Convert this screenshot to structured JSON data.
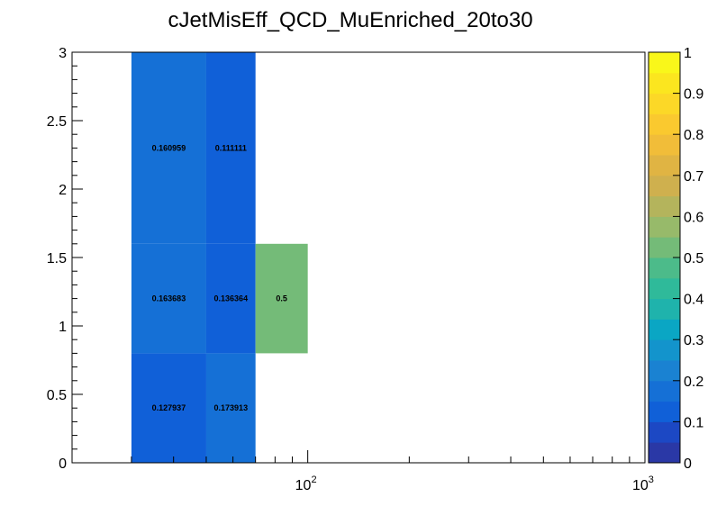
{
  "chart_data": {
    "type": "heatmap",
    "title": "cJetMisEff_QCD_MuEnriched_20to30",
    "xlabel": "",
    "ylabel": "",
    "x_scale": "log",
    "xlim": [
      20,
      1000
    ],
    "ylim": [
      0,
      3
    ],
    "zlim": [
      0,
      1
    ],
    "x_ticks": [
      {
        "value": 100,
        "label_base": "10",
        "label_exp": "2"
      },
      {
        "value": 1000,
        "label_base": "10",
        "label_exp": "3"
      }
    ],
    "y_ticks": [
      "0",
      "0.5",
      "1",
      "1.5",
      "2",
      "2.5",
      "3"
    ],
    "z_ticks": [
      "0",
      "0.1",
      "0.2",
      "0.3",
      "0.4",
      "0.5",
      "0.6",
      "0.7",
      "0.8",
      "0.9",
      "1"
    ],
    "cells": [
      {
        "x": [
          30,
          50
        ],
        "y": [
          0,
          0.8
        ],
        "value": 0.127937,
        "label": "0.127937"
      },
      {
        "x": [
          50,
          70
        ],
        "y": [
          0,
          0.8
        ],
        "value": 0.173913,
        "label": "0.173913"
      },
      {
        "x": [
          30,
          50
        ],
        "y": [
          0.8,
          1.6
        ],
        "value": 0.163683,
        "label": "0.163683"
      },
      {
        "x": [
          50,
          70
        ],
        "y": [
          0.8,
          1.6
        ],
        "value": 0.136364,
        "label": "0.136364"
      },
      {
        "x": [
          70,
          100
        ],
        "y": [
          0.8,
          1.6
        ],
        "value": 0.5,
        "label": "0.5"
      },
      {
        "x": [
          30,
          50
        ],
        "y": [
          1.6,
          3.0
        ],
        "value": 0.160959,
        "label": "0.160959"
      },
      {
        "x": [
          50,
          70
        ],
        "y": [
          1.6,
          3.0
        ],
        "value": 0.111111,
        "label": "0.111111"
      }
    ],
    "palette": [
      "#2a38a6",
      "#1c48c4",
      "#1060d8",
      "#1570d6",
      "#1a82d2",
      "#1394cc",
      "#0aa6c4",
      "#1fb3ac",
      "#2fba9a",
      "#4cbb8a",
      "#74bb78",
      "#97ba6a",
      "#b4b45c",
      "#cfb04e",
      "#e0b443",
      "#f1bd39",
      "#fac92f",
      "#fcd827",
      "#fbe61f",
      "#f9f71a"
    ],
    "grid": false,
    "legend": "none"
  }
}
